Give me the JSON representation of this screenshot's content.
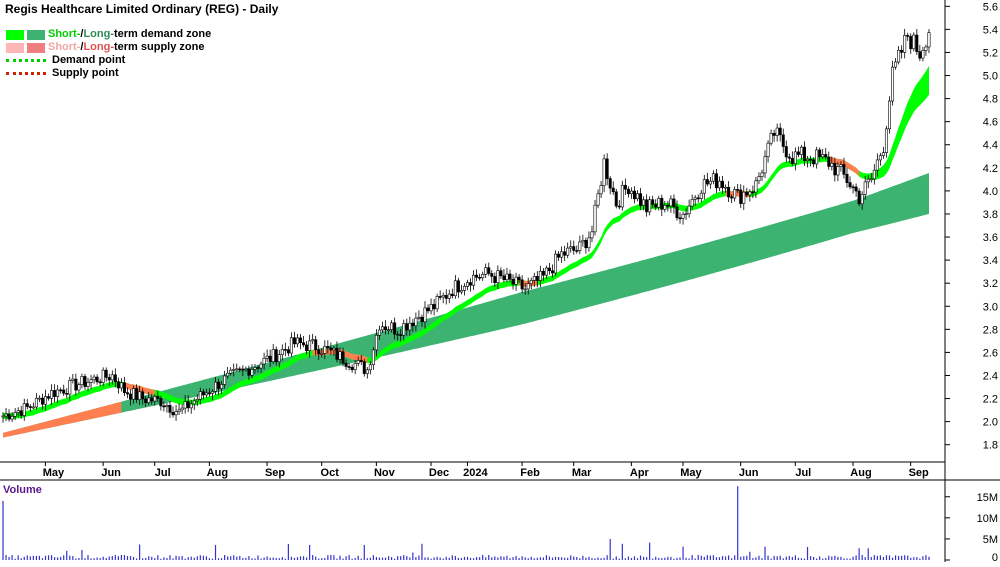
{
  "chart_data": {
    "type": "candlestick",
    "title": "Regis Healthcare Limited Ordinary (REG) - Daily",
    "legend": {
      "demand_zone": {
        "short": "Short-",
        "sep": " / ",
        "long": "Long-",
        "rest": "term demand zone"
      },
      "supply_zone": {
        "short": "Short-",
        "sep": " / ",
        "long": "Long-",
        "rest": "term supply zone"
      },
      "demand_point": "Demand point",
      "supply_point": "Supply point"
    },
    "price_axis": {
      "ticks": [
        "1.8",
        "2.0",
        "2.2",
        "2.4",
        "2.6",
        "2.8",
        "3.0",
        "3.2",
        "3.4",
        "3.6",
        "3.8",
        "4.0",
        "4.2",
        "4.4",
        "4.6",
        "4.8",
        "5.0",
        "5.2",
        "5.4",
        "5.6"
      ]
    },
    "x_labels": [
      "May",
      "Jun",
      "Jul",
      "Aug",
      "Sep",
      "Oct",
      "Nov",
      "Dec",
      "2024",
      "Feb",
      "Mar",
      "Apr",
      "May",
      "Jun",
      "Jul",
      "Aug",
      "Sep"
    ],
    "price_anchors": [
      {
        "i": 0,
        "p": 2.05
      },
      {
        "i": 8,
        "p": 2.12
      },
      {
        "i": 16,
        "p": 2.25
      },
      {
        "i": 24,
        "p": 2.32
      },
      {
        "i": 32,
        "p": 2.38
      },
      {
        "i": 36,
        "p": 2.4
      },
      {
        "i": 40,
        "p": 2.27
      },
      {
        "i": 46,
        "p": 2.2
      },
      {
        "i": 52,
        "p": 2.18
      },
      {
        "i": 58,
        "p": 2.08
      },
      {
        "i": 64,
        "p": 2.2
      },
      {
        "i": 72,
        "p": 2.35
      },
      {
        "i": 80,
        "p": 2.45
      },
      {
        "i": 88,
        "p": 2.55
      },
      {
        "i": 96,
        "p": 2.68
      },
      {
        "i": 104,
        "p": 2.65
      },
      {
        "i": 112,
        "p": 2.55
      },
      {
        "i": 120,
        "p": 2.45
      },
      {
        "i": 124,
        "p": 2.85
      },
      {
        "i": 130,
        "p": 2.8
      },
      {
        "i": 136,
        "p": 2.9
      },
      {
        "i": 142,
        "p": 3.0
      },
      {
        "i": 148,
        "p": 3.15
      },
      {
        "i": 154,
        "p": 3.25
      },
      {
        "i": 160,
        "p": 3.28
      },
      {
        "i": 166,
        "p": 3.22
      },
      {
        "i": 172,
        "p": 3.15
      },
      {
        "i": 178,
        "p": 3.25
      },
      {
        "i": 184,
        "p": 3.45
      },
      {
        "i": 190,
        "p": 3.5
      },
      {
        "i": 194,
        "p": 3.65
      },
      {
        "i": 198,
        "p": 4.25
      },
      {
        "i": 202,
        "p": 3.9
      },
      {
        "i": 206,
        "p": 4.05
      },
      {
        "i": 212,
        "p": 3.85
      },
      {
        "i": 218,
        "p": 3.9
      },
      {
        "i": 224,
        "p": 3.8
      },
      {
        "i": 230,
        "p": 4.05
      },
      {
        "i": 236,
        "p": 4.1
      },
      {
        "i": 242,
        "p": 3.95
      },
      {
        "i": 248,
        "p": 4.05
      },
      {
        "i": 254,
        "p": 4.5
      },
      {
        "i": 260,
        "p": 4.3
      },
      {
        "i": 266,
        "p": 4.3
      },
      {
        "i": 272,
        "p": 4.25
      },
      {
        "i": 278,
        "p": 4.1
      },
      {
        "i": 282,
        "p": 3.95
      },
      {
        "i": 286,
        "p": 4.1
      },
      {
        "i": 290,
        "p": 4.4
      },
      {
        "i": 293,
        "p": 5.0
      },
      {
        "i": 298,
        "p": 5.35
      },
      {
        "i": 302,
        "p": 5.2
      },
      {
        "i": 305,
        "p": 5.4
      }
    ],
    "volume": {
      "label": "Volume",
      "ticks": [
        "0",
        "5M",
        "10M",
        "15M"
      ],
      "spikes": [
        {
          "i": 0,
          "v": 14
        },
        {
          "i": 200,
          "v": 5
        },
        {
          "i": 242,
          "v": 17.5
        }
      ]
    },
    "colors": {
      "bull_candle": "#ffffff",
      "bear_candle": "#000000",
      "short_demand": "#00ff00",
      "long_demand": "#3cb371",
      "short_supply": "#ff7f50",
      "long_supply": "#f08080",
      "demand_point": "#00cc00",
      "supply_point": "#cc2200",
      "volume_bar": "#3333cc",
      "volume_title": "#5a1a8c"
    }
  }
}
